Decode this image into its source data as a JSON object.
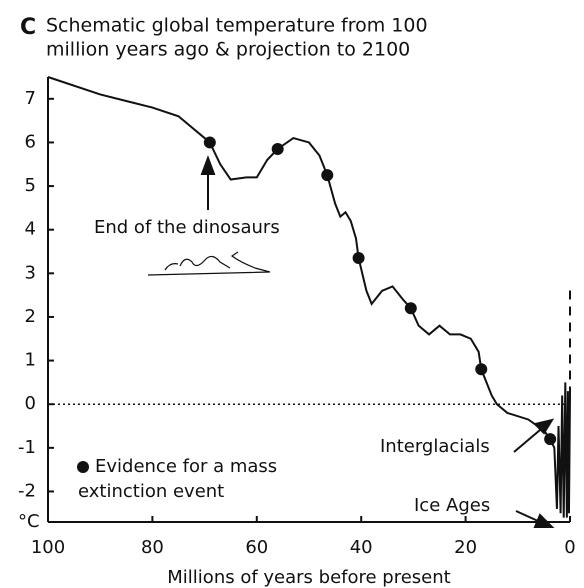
{
  "chart_data": {
    "type": "line",
    "panel": "C",
    "title_lines": [
      "Schematic global temperature from 100",
      "million years ago & projection to 2100"
    ],
    "x_label": "Millions of years before present",
    "y_unit": "°C",
    "xlim": [
      100,
      0
    ],
    "ylim": [
      -2.7,
      7.5
    ],
    "xticks": [
      100,
      80,
      60,
      40,
      20,
      0
    ],
    "yticks": [
      7,
      6,
      5,
      4,
      3,
      2,
      1,
      0,
      -1,
      -2
    ],
    "zero_line": true,
    "color": "#111111",
    "x": [
      100,
      90,
      80,
      75,
      70,
      69,
      67,
      65,
      62,
      60,
      58,
      56,
      53,
      50,
      48,
      46.5,
      45,
      44,
      43,
      42,
      41,
      40.5,
      39,
      38,
      36,
      34,
      32,
      30.5,
      29,
      27,
      25,
      23,
      21,
      19,
      17.5,
      17,
      15,
      14,
      12,
      8,
      5,
      3.8,
      3,
      2.5,
      2.2,
      1.8,
      1.5,
      1.2,
      0.9,
      0.6,
      0.4,
      0.2,
      0
    ],
    "values": [
      7.5,
      7.1,
      6.8,
      6.6,
      6.1,
      6.0,
      5.5,
      5.15,
      5.2,
      5.2,
      5.6,
      5.85,
      6.1,
      6.0,
      5.7,
      5.25,
      4.6,
      4.3,
      4.4,
      4.2,
      3.8,
      3.35,
      2.6,
      2.3,
      2.6,
      2.7,
      2.4,
      2.2,
      1.8,
      1.6,
      1.8,
      1.6,
      1.6,
      1.5,
      1.2,
      0.8,
      0.2,
      0,
      -0.2,
      -0.35,
      -0.6,
      -0.8,
      -1.0,
      -2.4,
      -0.5,
      -2.5,
      0.2,
      -2.6,
      0.5,
      -2.6,
      0.3,
      -2.5,
      0.2
    ],
    "projection": {
      "x": [
        0,
        0
      ],
      "values": [
        0.2,
        2.7
      ]
    },
    "events": {
      "x": [
        69,
        56,
        46.5,
        40.5,
        30.5,
        17,
        3.8
      ],
      "values": [
        6.0,
        5.85,
        5.25,
        3.35,
        2.2,
        0.8,
        -0.8
      ]
    },
    "legend_lines": [
      "Evidence for a mass",
      "extinction event"
    ],
    "annotations": [
      "End of the dinosaurs",
      "Interglacials",
      "Ice Ages"
    ]
  }
}
